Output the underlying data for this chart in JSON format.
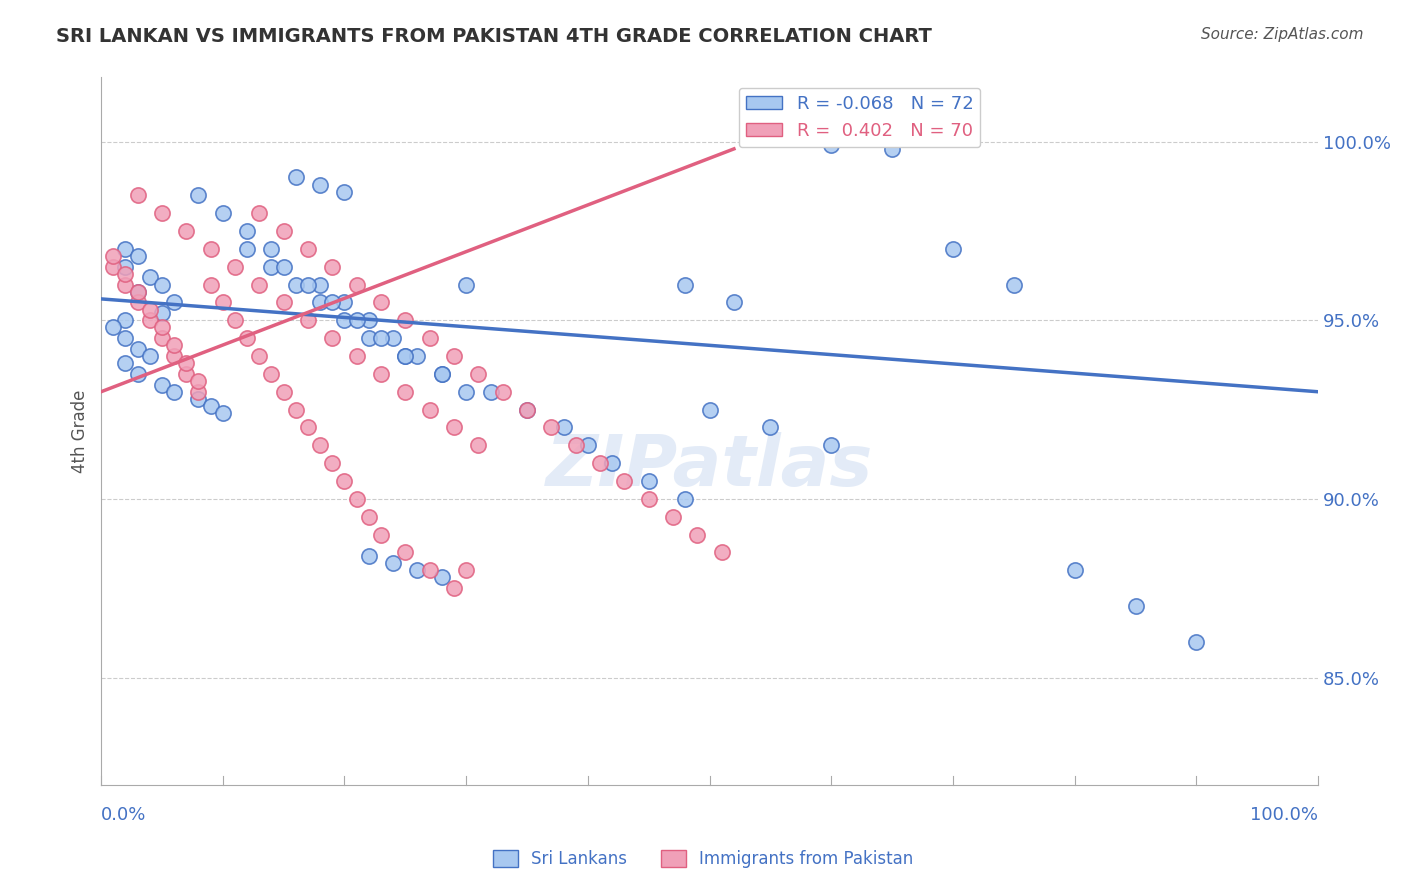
{
  "title": "SRI LANKAN VS IMMIGRANTS FROM PAKISTAN 4TH GRADE CORRELATION CHART",
  "source": "Source: ZipAtlas.com",
  "ylabel": "4th Grade",
  "ytick_values": [
    0.85,
    0.9,
    0.95,
    1.0
  ],
  "xlim": [
    0.0,
    1.0
  ],
  "ylim": [
    0.82,
    1.018
  ],
  "blue_R": "-0.068",
  "blue_N": "72",
  "pink_R": "0.402",
  "pink_N": "70",
  "blue_color": "#a8c8f0",
  "pink_color": "#f0a0b8",
  "blue_line_color": "#4472c4",
  "pink_line_color": "#e06080",
  "legend_label_blue": "Sri Lankans",
  "legend_label_pink": "Immigrants from Pakistan",
  "watermark": "ZIPatlas",
  "blue_scatter_x": [
    0.02,
    0.03,
    0.02,
    0.04,
    0.05,
    0.03,
    0.06,
    0.05,
    0.02,
    0.01,
    0.02,
    0.03,
    0.04,
    0.02,
    0.03,
    0.05,
    0.06,
    0.08,
    0.09,
    0.1,
    0.12,
    0.14,
    0.16,
    0.18,
    0.2,
    0.22,
    0.25,
    0.28,
    0.3,
    0.35,
    0.38,
    0.4,
    0.42,
    0.45,
    0.48,
    0.3,
    0.32,
    0.5,
    0.55,
    0.6,
    0.48,
    0.52,
    0.18,
    0.2,
    0.22,
    0.24,
    0.26,
    0.28,
    0.08,
    0.1,
    0.12,
    0.14,
    0.15,
    0.17,
    0.19,
    0.21,
    0.23,
    0.25,
    0.6,
    0.65,
    0.7,
    0.75,
    0.8,
    0.85,
    0.9,
    0.16,
    0.18,
    0.2,
    0.22,
    0.24,
    0.26,
    0.28
  ],
  "blue_scatter_y": [
    0.97,
    0.968,
    0.965,
    0.962,
    0.96,
    0.958,
    0.955,
    0.952,
    0.95,
    0.948,
    0.945,
    0.942,
    0.94,
    0.938,
    0.935,
    0.932,
    0.93,
    0.928,
    0.926,
    0.924,
    0.97,
    0.965,
    0.96,
    0.955,
    0.95,
    0.945,
    0.94,
    0.935,
    0.93,
    0.925,
    0.92,
    0.915,
    0.91,
    0.905,
    0.9,
    0.96,
    0.93,
    0.925,
    0.92,
    0.915,
    0.96,
    0.955,
    0.96,
    0.955,
    0.95,
    0.945,
    0.94,
    0.935,
    0.985,
    0.98,
    0.975,
    0.97,
    0.965,
    0.96,
    0.955,
    0.95,
    0.945,
    0.94,
    0.999,
    0.998,
    0.97,
    0.96,
    0.88,
    0.87,
    0.86,
    0.99,
    0.988,
    0.986,
    0.884,
    0.882,
    0.88,
    0.878
  ],
  "pink_scatter_x": [
    0.01,
    0.01,
    0.02,
    0.02,
    0.03,
    0.03,
    0.04,
    0.04,
    0.05,
    0.05,
    0.06,
    0.06,
    0.07,
    0.07,
    0.08,
    0.08,
    0.09,
    0.1,
    0.11,
    0.12,
    0.13,
    0.14,
    0.15,
    0.16,
    0.17,
    0.18,
    0.19,
    0.2,
    0.21,
    0.22,
    0.23,
    0.25,
    0.27,
    0.29,
    0.03,
    0.05,
    0.07,
    0.09,
    0.11,
    0.13,
    0.15,
    0.17,
    0.19,
    0.21,
    0.23,
    0.25,
    0.27,
    0.29,
    0.31,
    0.13,
    0.15,
    0.17,
    0.19,
    0.21,
    0.23,
    0.25,
    0.27,
    0.29,
    0.31,
    0.33,
    0.35,
    0.37,
    0.39,
    0.41,
    0.43,
    0.45,
    0.47,
    0.49,
    0.51,
    0.3
  ],
  "pink_scatter_y": [
    0.965,
    0.968,
    0.96,
    0.963,
    0.955,
    0.958,
    0.95,
    0.953,
    0.945,
    0.948,
    0.94,
    0.943,
    0.935,
    0.938,
    0.93,
    0.933,
    0.96,
    0.955,
    0.95,
    0.945,
    0.94,
    0.935,
    0.93,
    0.925,
    0.92,
    0.915,
    0.91,
    0.905,
    0.9,
    0.895,
    0.89,
    0.885,
    0.88,
    0.875,
    0.985,
    0.98,
    0.975,
    0.97,
    0.965,
    0.96,
    0.955,
    0.95,
    0.945,
    0.94,
    0.935,
    0.93,
    0.925,
    0.92,
    0.915,
    0.98,
    0.975,
    0.97,
    0.965,
    0.96,
    0.955,
    0.95,
    0.945,
    0.94,
    0.935,
    0.93,
    0.925,
    0.92,
    0.915,
    0.91,
    0.905,
    0.9,
    0.895,
    0.89,
    0.885,
    0.88
  ],
  "blue_trend_x": [
    0.0,
    1.0
  ],
  "blue_trend_y": [
    0.956,
    0.93
  ],
  "pink_trend_x": [
    0.0,
    0.52
  ],
  "pink_trend_y": [
    0.93,
    0.998
  ],
  "grid_color": "#cccccc",
  "background_color": "#ffffff",
  "label_color": "#4472c4",
  "title_color": "#333333"
}
